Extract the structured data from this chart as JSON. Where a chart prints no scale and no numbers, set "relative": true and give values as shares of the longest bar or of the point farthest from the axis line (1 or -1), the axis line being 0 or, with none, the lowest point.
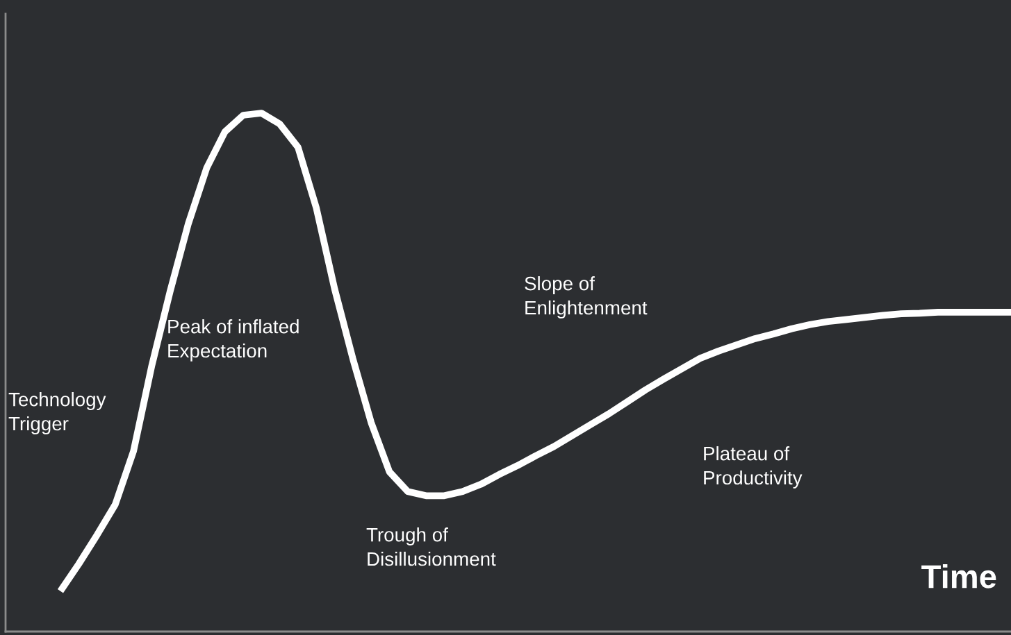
{
  "chart_data": {
    "type": "line",
    "relative": true,
    "xlabel": "Time",
    "categories": [
      null,
      null,
      null,
      null,
      null,
      null,
      null,
      null,
      null,
      null,
      null,
      null,
      null,
      null,
      null,
      null,
      null,
      null,
      null,
      null,
      null,
      null,
      null,
      null,
      null,
      null,
      null,
      null,
      null,
      null,
      null,
      null,
      null,
      null,
      null,
      null,
      null,
      null,
      null,
      null,
      null,
      null,
      null,
      null,
      null,
      null,
      null,
      null,
      null,
      null,
      null,
      null,
      null,
      null,
      null,
      null
    ],
    "series": [
      {
        "color": "#ffffff",
        "values": [
          null,
          null,
          null,
          0.078,
          0.13,
          0.186,
          0.245,
          0.348,
          0.513,
          0.656,
          0.787,
          0.894,
          0.964,
          0.996,
          1.0,
          0.979,
          0.934,
          0.817,
          0.661,
          0.526,
          0.403,
          0.308,
          0.27,
          0.262,
          0.262,
          0.27,
          0.284,
          0.303,
          0.32,
          0.339,
          0.357,
          0.378,
          0.399,
          0.42,
          0.443,
          0.466,
          0.487,
          0.507,
          0.527,
          0.541,
          0.553,
          0.565,
          0.574,
          0.584,
          0.592,
          0.598,
          0.602,
          0.606,
          0.61,
          0.613,
          0.614,
          0.616,
          0.616,
          0.616,
          0.616,
          0.616
        ]
      }
    ],
    "annotations": [
      "Technology\nTrigger",
      "Peak of inflated\nExpectation",
      "Trough of\nDisillusionment",
      "Slope of\nEnlightenment",
      "Plateau of\nProductivity"
    ],
    "legend": false,
    "marker": "none",
    "line_style": "solid"
  }
}
